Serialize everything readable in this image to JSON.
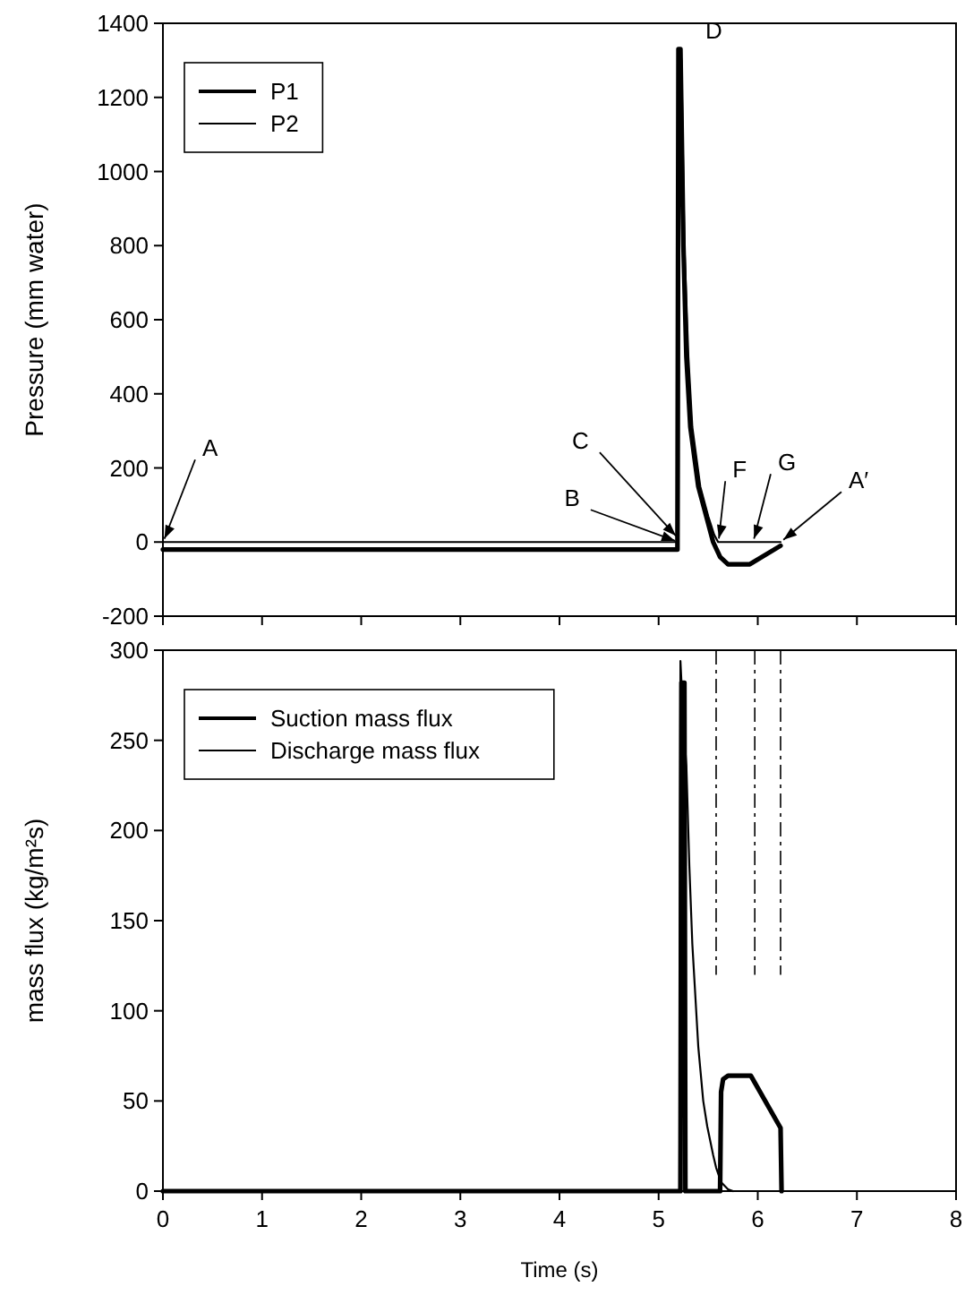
{
  "chart_data": [
    {
      "type": "line",
      "ylabel": "Pressure (mm water)",
      "xlim": [
        0,
        8
      ],
      "ylim": [
        -200,
        1400
      ],
      "xticks": [
        0,
        1,
        2,
        3,
        4,
        5,
        6,
        7,
        8
      ],
      "yticks": [
        -200,
        0,
        200,
        400,
        600,
        800,
        1000,
        1200,
        1400
      ],
      "tick_labels": "y",
      "legend": "top left",
      "grid": false,
      "marker": "none",
      "line_style": "solid",
      "series": [
        {
          "name": "P1",
          "color": "#000000",
          "x": [
            0,
            5.19,
            5.2,
            5.22,
            5.25,
            5.28,
            5.32,
            5.4,
            5.49,
            5.55,
            5.62,
            5.7,
            5.92,
            6.23
          ],
          "values": [
            -20,
            -20,
            1330,
            1330,
            800,
            500,
            310,
            150,
            60,
            0,
            -40,
            -60,
            -60,
            -10
          ]
        },
        {
          "name": "P2",
          "color": "#000000",
          "x": [
            0,
            5.2,
            5.21,
            5.23,
            5.26,
            5.3,
            5.34,
            5.42,
            5.5,
            5.56,
            5.6,
            6.23
          ],
          "values": [
            0,
            0,
            1330,
            1300,
            800,
            500,
            310,
            150,
            70,
            20,
            0,
            0
          ]
        }
      ],
      "annotations": [
        {
          "text": "A",
          "x": 0,
          "y": 0
        },
        {
          "text": "B",
          "x": 5.2,
          "y": 0
        },
        {
          "text": "C",
          "x": 5.2,
          "y": 10
        },
        {
          "text": "D",
          "x": 5.22,
          "y": 1330
        },
        {
          "text": "F",
          "x": 5.6,
          "y": 0
        },
        {
          "text": "G",
          "x": 5.95,
          "y": 0
        },
        {
          "text": "A′",
          "x": 6.23,
          "y": 0
        }
      ]
    },
    {
      "type": "line",
      "xlabel": "Time (s)",
      "ylabel": "mass flux (kg/m²s)",
      "xlim": [
        0,
        8
      ],
      "ylim": [
        0,
        300
      ],
      "xticks": [
        0,
        1,
        2,
        3,
        4,
        5,
        6,
        7,
        8
      ],
      "yticks": [
        0,
        50,
        100,
        150,
        200,
        250,
        300
      ],
      "legend": "top left",
      "grid": false,
      "marker": "none",
      "line_style": "solid",
      "series": [
        {
          "name": "Suction mass flux",
          "color": "#000000",
          "x": [
            0,
            5.22,
            5.23,
            5.26,
            5.27,
            5.62,
            5.63,
            5.65,
            5.7,
            5.93,
            6.23,
            6.24
          ],
          "values": [
            0,
            0,
            282,
            282,
            0,
            0,
            55,
            62,
            64,
            64,
            35,
            0
          ]
        },
        {
          "name": "Discharge mass flux",
          "color": "#000000",
          "x": [
            0,
            5.21,
            5.22,
            5.25,
            5.28,
            5.31,
            5.34,
            5.4,
            5.45,
            5.49,
            5.55,
            5.58,
            5.63,
            5.7,
            5.75
          ],
          "values": [
            0,
            0,
            294,
            260,
            236,
            180,
            137,
            80,
            50,
            36,
            20,
            13,
            5,
            1,
            0
          ]
        }
      ],
      "ref_lines": [
        {
          "axis": "x",
          "value": 5.58,
          "line_style": "dashed"
        },
        {
          "axis": "x",
          "value": 5.97,
          "line_style": "dashed"
        },
        {
          "axis": "x",
          "value": 6.23,
          "line_style": "dashed"
        }
      ]
    }
  ]
}
